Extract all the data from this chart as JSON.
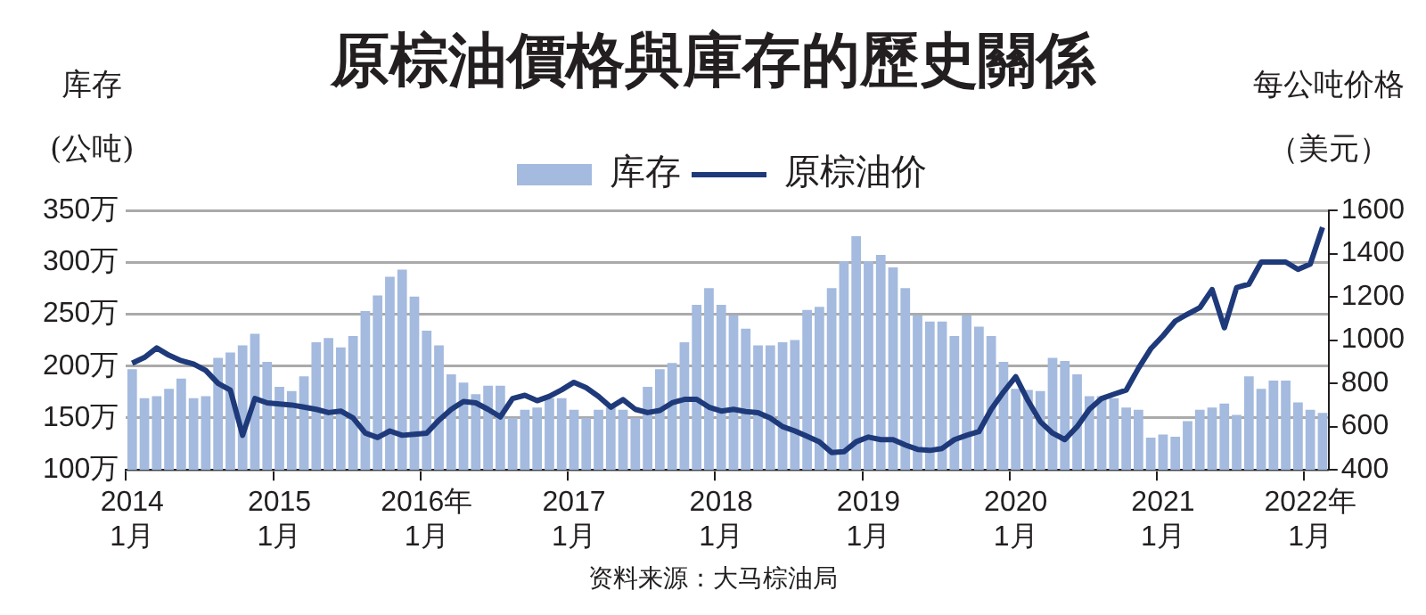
{
  "chart_data": {
    "type": "bar",
    "title": "原棕油價格與庫存的歷史關係",
    "ylabel": "库存(公吨)",
    "y2label": "每公吨价格（美元）",
    "categories": [
      "2014\n1月",
      null,
      null,
      null,
      null,
      null,
      null,
      null,
      null,
      null,
      null,
      null,
      "2015\n1月",
      null,
      null,
      null,
      null,
      null,
      null,
      null,
      null,
      null,
      null,
      null,
      "2016年\n1月",
      null,
      null,
      null,
      null,
      null,
      null,
      null,
      null,
      null,
      null,
      null,
      "2017\n1月",
      null,
      null,
      null,
      null,
      null,
      null,
      null,
      null,
      null,
      null,
      null,
      "2018\n1月",
      null,
      null,
      null,
      null,
      null,
      null,
      null,
      null,
      null,
      null,
      null,
      "2019\n1月",
      null,
      null,
      null,
      null,
      null,
      null,
      null,
      null,
      null,
      null,
      null,
      "2020\n1月",
      null,
      null,
      null,
      null,
      null,
      null,
      null,
      null,
      null,
      null,
      null,
      "2021\n1月",
      null,
      null,
      null,
      null,
      null,
      null,
      null,
      null,
      null,
      null,
      null,
      "2022年\n1月",
      null
    ],
    "series": [
      {
        "name": "库存",
        "color": "#a4bade",
        "values": [
          197,
          169,
          171,
          178,
          188,
          169,
          171,
          208,
          213,
          220,
          231,
          204,
          180,
          176,
          190,
          223,
          227,
          218,
          229,
          253,
          268,
          286,
          293,
          267,
          234,
          220,
          192,
          184,
          173,
          181,
          181,
          150,
          158,
          160,
          169,
          169,
          158,
          150,
          158,
          160,
          158,
          150,
          180,
          197,
          203,
          223,
          259,
          275,
          259,
          249,
          236,
          220,
          220,
          223,
          225,
          254,
          257,
          275,
          301,
          325,
          301,
          307,
          295,
          275,
          249,
          243,
          243,
          229,
          249,
          238,
          229,
          204,
          178,
          177,
          176,
          208,
          205,
          192,
          171,
          171,
          169,
          160,
          158,
          131,
          134,
          132,
          147,
          158,
          160,
          164,
          153,
          190,
          178,
          186,
          186,
          165,
          158,
          155
        ]
      },
      {
        "name": "原棕油价",
        "type": "line",
        "axis": "y2",
        "color": "#1f3a7a",
        "values": [
          893,
          920,
          964,
          930,
          905,
          890,
          860,
          800,
          769,
          560,
          730,
          710,
          705,
          700,
          690,
          680,
          665,
          672,
          640,
          570,
          550,
          580,
          560,
          565,
          570,
          630,
          680,
          716,
          710,
          680,
          645,
          730,
          745,
          720,
          740,
          770,
          805,
          780,
          740,
          690,
          725,
          680,
          665,
          675,
          710,
          726,
          726,
          690,
          672,
          680,
          670,
          665,
          640,
          600,
          580,
          555,
          530,
          480,
          484,
          530,
          552,
          540,
          540,
          515,
          495,
          490,
          499,
          540,
          560,
          577,
          680,
          760,
          831,
          720,
          623,
          570,
          540,
          600,
          680,
          730,
          750,
          769,
          870,
          960,
          1020,
          1088,
          1120,
          1150,
          1234,
          1057,
          1243,
          1259,
          1361,
          1361,
          1361,
          1327,
          1352,
          1522
        ]
      }
    ],
    "ylim": [
      100,
      350
    ],
    "yticks": [
      {
        "value": 100,
        "label": "100万"
      },
      {
        "value": 150,
        "label": "150万"
      },
      {
        "value": 200,
        "label": "200万"
      },
      {
        "value": 250,
        "label": "250万"
      },
      {
        "value": 300,
        "label": "300万"
      },
      {
        "value": 350,
        "label": "350万"
      }
    ],
    "y2lim": [
      400,
      1600
    ],
    "y2ticks": [
      400,
      600,
      800,
      1000,
      1200,
      1400,
      1600
    ],
    "grid": "y",
    "legend": "top",
    "marker": "none",
    "line_style": "solid",
    "annotations": [
      "资料来源：大马棕油局"
    ]
  }
}
